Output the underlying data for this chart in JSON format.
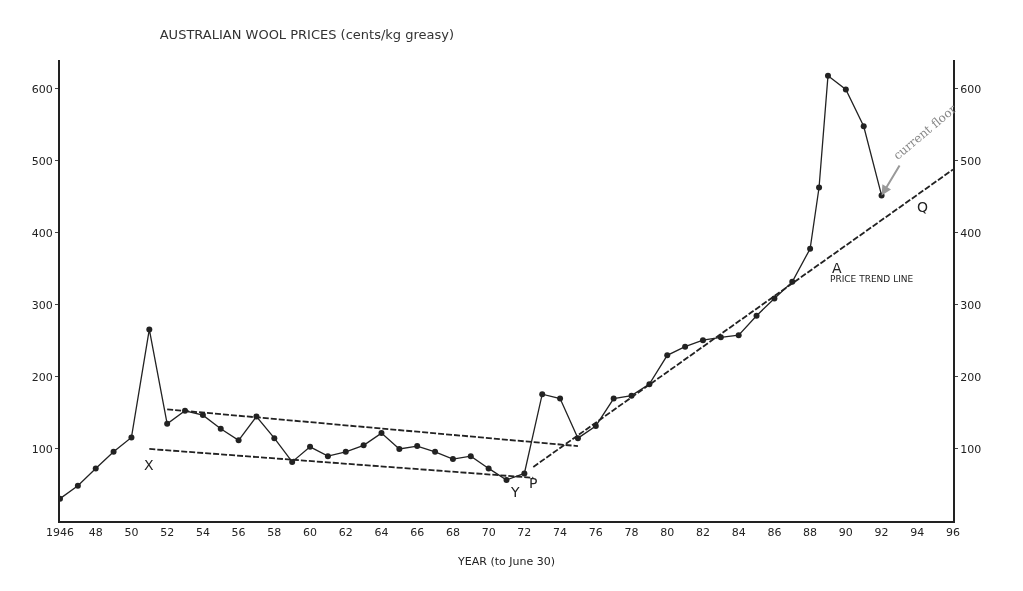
{
  "chart_data": {
    "type": "line",
    "title": "AUSTRALIAN WOOL PRICES (cents/kg greasy)",
    "xlabel": "YEAR (to June 30)",
    "xlim": [
      1946,
      1996
    ],
    "xticks": [
      {
        "value": 1946,
        "label": "1946"
      },
      {
        "value": 1948,
        "label": "48"
      },
      {
        "value": 1950,
        "label": "50"
      },
      {
        "value": 1952,
        "label": "52"
      },
      {
        "value": 1954,
        "label": "54"
      },
      {
        "value": 1956,
        "label": "56"
      },
      {
        "value": 1958,
        "label": "58"
      },
      {
        "value": 1960,
        "label": "60"
      },
      {
        "value": 1962,
        "label": "62"
      },
      {
        "value": 1964,
        "label": "64"
      },
      {
        "value": 1966,
        "label": "66"
      },
      {
        "value": 1968,
        "label": "68"
      },
      {
        "value": 1970,
        "label": "70"
      },
      {
        "value": 1972,
        "label": "72"
      },
      {
        "value": 1974,
        "label": "74"
      },
      {
        "value": 1976,
        "label": "76"
      },
      {
        "value": 1978,
        "label": "78"
      },
      {
        "value": 1980,
        "label": "80"
      },
      {
        "value": 1982,
        "label": "82"
      },
      {
        "value": 1984,
        "label": "84"
      },
      {
        "value": 1986,
        "label": "86"
      },
      {
        "value": 1988,
        "label": "88"
      },
      {
        "value": 1990,
        "label": "90"
      },
      {
        "value": 1992,
        "label": "92"
      },
      {
        "value": 1994,
        "label": "94"
      },
      {
        "value": 1996,
        "label": "96"
      }
    ],
    "ylim": [
      0,
      640
    ],
    "yticks": [
      100,
      200,
      300,
      400,
      500,
      600
    ],
    "y2lim": [
      0,
      640
    ],
    "y2ticks": [
      100,
      200,
      300,
      400,
      500,
      600
    ],
    "grid": false,
    "marker": "circle",
    "series": [
      {
        "color": "#222222",
        "line_style": "solid",
        "x": [
          1946,
          1947,
          1948,
          1949,
          1950,
          1951,
          1952,
          1953,
          1954,
          1955,
          1956,
          1957,
          1958,
          1959,
          1960,
          1961,
          1962,
          1963,
          1964,
          1965,
          1966,
          1967,
          1968,
          1969,
          1970,
          1971,
          1972,
          1973,
          1974,
          1975,
          1976,
          1977,
          1978,
          1979,
          1980,
          1981,
          1982,
          1983,
          1984,
          1985,
          1986,
          1987,
          1988,
          1988.5,
          1989,
          1990,
          1991,
          1992
        ],
        "values": [
          31,
          49,
          73,
          96,
          116,
          266,
          135,
          153,
          147,
          128,
          112,
          145,
          115,
          82,
          103,
          90,
          96,
          105,
          122,
          100,
          104,
          96,
          86,
          90,
          73,
          57,
          66,
          176,
          170,
          115,
          132,
          170,
          174,
          190,
          230,
          242,
          251,
          255,
          258,
          285,
          309,
          332,
          378,
          463,
          618,
          599,
          548,
          452
        ]
      },
      {
        "color": "#222222",
        "marker": "none",
        "line_style": "dashed",
        "x": [
          1952,
          1975
        ],
        "values": [
          155,
          104
        ]
      },
      {
        "color": "#222222",
        "marker": "none",
        "line_style": "dashed",
        "x": [
          1951,
          1972.5
        ],
        "values": [
          100,
          60
        ]
      },
      {
        "color": "#222222",
        "marker": "none",
        "line_style": "dashed",
        "x": [
          1972.5,
          1996
        ],
        "values": [
          75,
          488
        ]
      }
    ],
    "annotations": [
      {
        "text": "X",
        "x": 1951,
        "y": 100
      },
      {
        "text": "Y",
        "x": 1971.5,
        "y": 62
      },
      {
        "text": "P",
        "x": 1972.5,
        "y": 75
      },
      {
        "text": "A",
        "x": 1989.5,
        "y": 374
      },
      {
        "text": "Q",
        "x": 1994.3,
        "y": 458
      },
      {
        "text": "PRICE TREND LINE",
        "x": 1989,
        "y": 365
      },
      {
        "text": "current floor",
        "x": 1992,
        "y": 452
      }
    ]
  }
}
